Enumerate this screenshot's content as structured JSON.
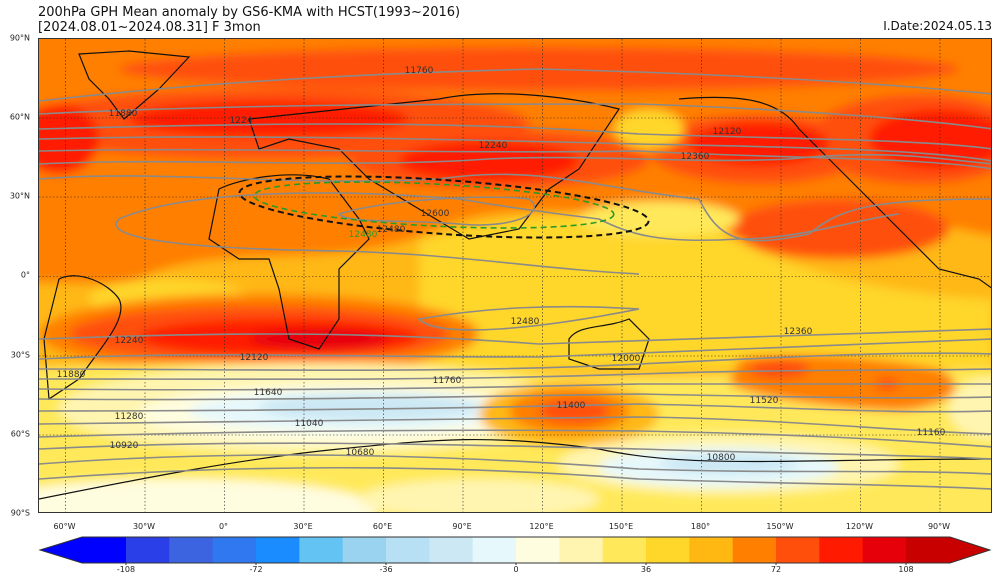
{
  "header": {
    "title_line1": "200hPa GPH Mean anomaly by GS6-KMA with HCST(1993~2016)",
    "title_line2": "[2024.08.01~2024.08.31] F 3mon",
    "issue_date": "I.Date:2024.05.13"
  },
  "axes": {
    "lat_labels": [
      "90°N",
      "60°N",
      "30°N",
      "0°",
      "30°S",
      "60°S",
      "90°S"
    ],
    "lon_labels": [
      "60°W",
      "30°W",
      "0°",
      "30°E",
      "60°E",
      "90°E",
      "120°E",
      "150°E",
      "180°",
      "150°W",
      "120°W",
      "90°W"
    ]
  },
  "contour_labels": [
    "11760",
    "11880",
    "1224",
    "12240",
    "12120",
    "12360",
    "12600",
    "12480",
    "12480",
    "12240",
    "12120",
    "11880",
    "11760",
    "11640",
    "11280",
    "11040",
    "10920",
    "10680",
    "12480",
    "12360",
    "12000",
    "11400",
    "11520",
    "11160",
    "10800"
  ],
  "colorbar": {
    "under_color": "#0000ff",
    "over_color": "#c80000",
    "colors": [
      "#2a3fe8",
      "#3c64e0",
      "#2f78f0",
      "#1a8cff",
      "#63c3f2",
      "#9ad3f0",
      "#b8e0f4",
      "#cce8f4",
      "#e6f8fc",
      "#fffde0",
      "#fff5b0",
      "#ffe95a",
      "#ffd62a",
      "#ffb812",
      "#ff7f00",
      "#ff4f0a",
      "#ff1a00",
      "#e6000a"
    ],
    "ticks": [
      "-108",
      "-72",
      "-36",
      "0",
      "36",
      "72",
      "108"
    ]
  }
}
